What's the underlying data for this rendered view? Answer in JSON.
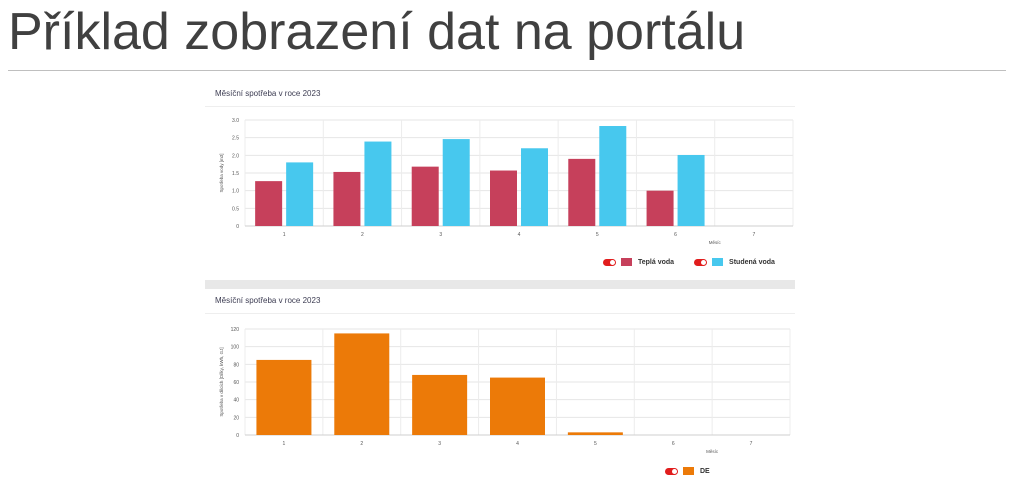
{
  "slide": {
    "title": "Příklad zobrazení dat na portálu"
  },
  "chart_data": [
    {
      "type": "bar",
      "title": "Měsíční spotřeba v roce 2023",
      "xlabel": "Měsíc",
      "ylabel": "Spotřeba vody [m3]",
      "ylim": [
        0,
        3.0
      ],
      "yticks": [
        "0",
        "0.5",
        "1.0",
        "1.5",
        "2.0",
        "2.5",
        "3.0"
      ],
      "categories": [
        "1",
        "2",
        "3",
        "4",
        "5",
        "6",
        "7"
      ],
      "grid": true,
      "legend_position": "bottom-right",
      "series": [
        {
          "name": "Teplá voda",
          "color": "#c6405b",
          "values": [
            1.27,
            1.53,
            1.68,
            1.57,
            1.9,
            1.0,
            null
          ]
        },
        {
          "name": "Studená voda",
          "color": "#47c8ee",
          "values": [
            1.8,
            2.39,
            2.46,
            2.2,
            2.83,
            2.01,
            null
          ]
        }
      ]
    },
    {
      "type": "bar",
      "title": "Měsíční spotřeba v roce 2023",
      "xlabel": "Měsíc",
      "ylabel": "Spotřeba v dílcích [Dílky, kWh, GJ]",
      "ylim": [
        0,
        120
      ],
      "yticks": [
        "0",
        "20",
        "40",
        "60",
        "80",
        "100",
        "120"
      ],
      "categories": [
        "1",
        "2",
        "3",
        "4",
        "5",
        "6",
        "7"
      ],
      "grid": true,
      "legend_position": "bottom-right",
      "series": [
        {
          "name": "DE",
          "color": "#ec7a08",
          "values": [
            85,
            115,
            68,
            65,
            3,
            null,
            null
          ]
        }
      ]
    }
  ]
}
